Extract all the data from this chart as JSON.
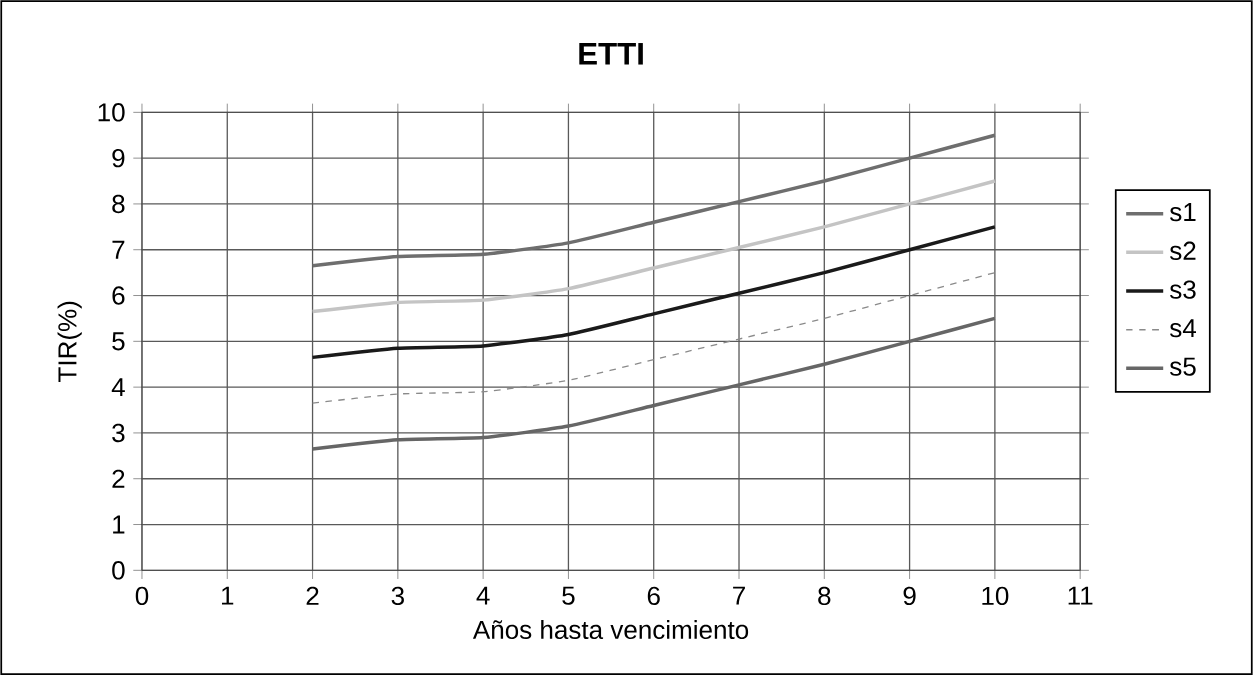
{
  "chart_data": {
    "type": "line",
    "title": "ETTI",
    "xlabel": "Años hasta vencimiento",
    "ylabel": "TIR(%)",
    "x": [
      2,
      3,
      4,
      5,
      6,
      7,
      8,
      9,
      10
    ],
    "series": [
      {
        "name": "s1",
        "color": "#6e6e6e",
        "values": [
          6.65,
          6.85,
          6.9,
          7.15,
          7.6,
          8.05,
          8.5,
          9.0,
          9.5
        ]
      },
      {
        "name": "s2",
        "color": "#c4c4c4",
        "values": [
          5.65,
          5.85,
          5.9,
          6.15,
          6.6,
          7.05,
          7.5,
          8.0,
          8.5
        ]
      },
      {
        "name": "s3",
        "color": "#1a1a1a",
        "values": [
          4.65,
          4.85,
          4.9,
          5.15,
          5.6,
          6.05,
          6.5,
          7.0,
          7.5
        ]
      },
      {
        "name": "s4",
        "color": "#8a8a8a",
        "line_style": "dashed",
        "values": [
          3.65,
          3.85,
          3.9,
          4.15,
          4.6,
          5.05,
          5.5,
          6.0,
          6.5
        ]
      },
      {
        "name": "s5",
        "color": "#666666",
        "values": [
          2.65,
          2.85,
          2.9,
          3.15,
          3.6,
          4.05,
          4.5,
          5.0,
          5.5
        ]
      }
    ],
    "xlim": [
      0,
      11
    ],
    "xticks": [
      0,
      1,
      2,
      3,
      4,
      5,
      6,
      7,
      8,
      9,
      10,
      11
    ],
    "ylim": [
      0,
      10
    ],
    "yticks": [
      0,
      1,
      2,
      3,
      4,
      5,
      6,
      7,
      8,
      9,
      10
    ],
    "grid": true,
    "legend": "right",
    "marker": "none",
    "line_style": "solid"
  }
}
